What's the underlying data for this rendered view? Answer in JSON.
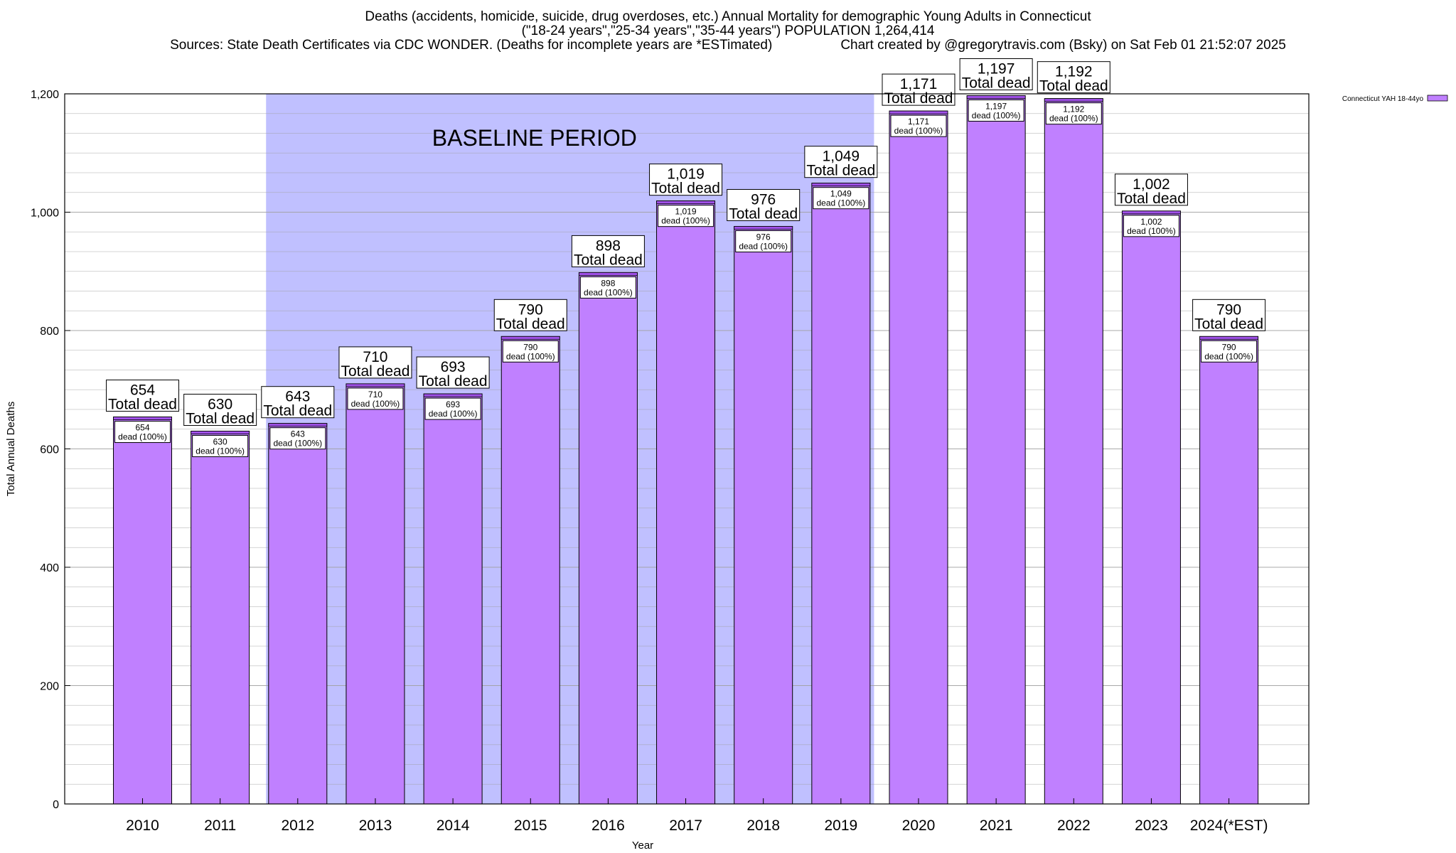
{
  "title_lines": [
    "Deaths (accidents, homicide, suicide, drug overdoses, etc.) Annual Mortality for demographic Young Adults in Connecticut",
    "(\"18-24 years\",\"25-34 years\",\"35-44 years\") POPULATION 1,264,414",
    "Sources: State Death Certificates via CDC WONDER. (Deaths for incomplete years are *ESTimated)"
  ],
  "credit": "Chart created by @gregorytravis.com (Bsky) on Sat Feb 01 21:52:07 2025",
  "colors": {
    "bar": "#c080ff",
    "bar_top": "#a050e8",
    "baseline_band": "#c0c0ff",
    "grid": "#a0a0a0"
  },
  "chart_data": {
    "type": "bar",
    "title": "Deaths (accidents, homicide, suicide, drug overdoses, etc.) Annual Mortality for demographic Young Adults in Connecticut",
    "xlabel": "Year",
    "ylabel": "Total Annual Deaths",
    "ylim": [
      0,
      1200
    ],
    "yticks": [
      0,
      200,
      400,
      600,
      800,
      1000,
      1200
    ],
    "ytick_labels": [
      "0",
      "200",
      "400",
      "600",
      "800",
      "1,000",
      "1,200"
    ],
    "grid": true,
    "legend": {
      "position": "top-right",
      "entries": [
        "Connecticut YAH 18-44yo"
      ]
    },
    "categories": [
      "2010",
      "2011",
      "2012",
      "2013",
      "2014",
      "2015",
      "2016",
      "2017",
      "2018",
      "2019",
      "2020",
      "2021",
      "2022",
      "2023",
      "2024(*EST)"
    ],
    "series": [
      {
        "name": "Connecticut YAH 18-44yo",
        "values": [
          654,
          630,
          643,
          710,
          693,
          790,
          898,
          1019,
          976,
          1049,
          1171,
          1197,
          1192,
          1002,
          790
        ]
      }
    ],
    "value_labels": [
      "654",
      "630",
      "643",
      "710",
      "693",
      "790",
      "898",
      "1,019",
      "976",
      "1,049",
      "1,171",
      "1,197",
      "1,192",
      "1,002",
      "790"
    ],
    "total_label": "Total dead",
    "inner_label": "dead (100%)",
    "annotations": [
      {
        "text": "BASELINE PERIOD",
        "from_category": "2012",
        "to_category": "2019"
      }
    ]
  }
}
